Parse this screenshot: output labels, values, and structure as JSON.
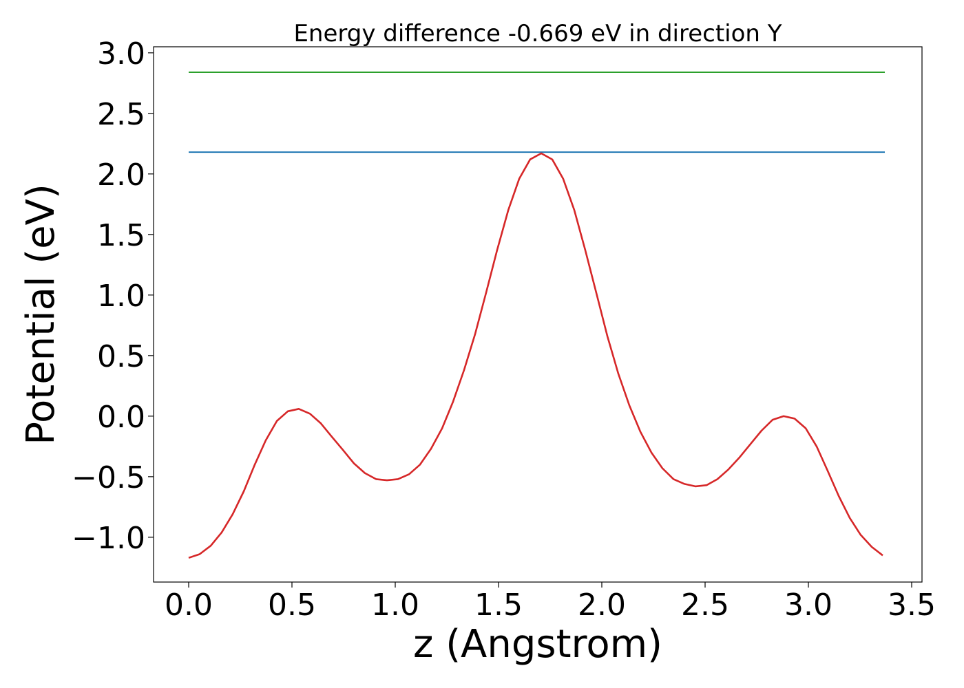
{
  "chart_data": {
    "type": "line",
    "title": "Energy difference -0.669 eV in direction Y",
    "xlabel": "z (Angstrom)",
    "ylabel": "Potential (eV)",
    "xlim": [
      -0.17,
      3.55
    ],
    "ylim": [
      -1.37,
      3.05
    ],
    "xticks": [
      {
        "value": 0.0,
        "label": "0.0"
      },
      {
        "value": 0.5,
        "label": "0.5"
      },
      {
        "value": 1.0,
        "label": "1.0"
      },
      {
        "value": 1.5,
        "label": "1.5"
      },
      {
        "value": 2.0,
        "label": "2.0"
      },
      {
        "value": 2.5,
        "label": "2.5"
      },
      {
        "value": 3.0,
        "label": "3.0"
      },
      {
        "value": 3.5,
        "label": "3.5"
      }
    ],
    "yticks": [
      {
        "value": -1.0,
        "label": "−1.0"
      },
      {
        "value": -0.5,
        "label": "−0.5"
      },
      {
        "value": 0.0,
        "label": "0.0"
      },
      {
        "value": 0.5,
        "label": "0.5"
      },
      {
        "value": 1.0,
        "label": "1.0"
      },
      {
        "value": 1.5,
        "label": "1.5"
      },
      {
        "value": 2.0,
        "label": "2.0"
      },
      {
        "value": 2.5,
        "label": "2.5"
      },
      {
        "value": 3.0,
        "label": "3.0"
      }
    ],
    "grid": false,
    "series": [
      {
        "color": "#2ca02c",
        "x": [
          0.0,
          3.37
        ],
        "y": [
          2.84,
          2.84
        ]
      },
      {
        "color": "#1f77b4",
        "x": [
          0.0,
          3.37
        ],
        "y": [
          2.18,
          2.18
        ]
      },
      {
        "color": "#d62728",
        "x": [
          0.0,
          0.053,
          0.107,
          0.16,
          0.213,
          0.267,
          0.32,
          0.373,
          0.427,
          0.48,
          0.533,
          0.587,
          0.64,
          0.693,
          0.747,
          0.8,
          0.853,
          0.907,
          0.96,
          1.013,
          1.067,
          1.12,
          1.173,
          1.227,
          1.28,
          1.333,
          1.387,
          1.44,
          1.493,
          1.547,
          1.6,
          1.653,
          1.707,
          1.76,
          1.813,
          1.867,
          1.92,
          1.973,
          2.027,
          2.08,
          2.133,
          2.187,
          2.24,
          2.293,
          2.347,
          2.4,
          2.453,
          2.507,
          2.56,
          2.613,
          2.667,
          2.72,
          2.773,
          2.827,
          2.88,
          2.933,
          2.987,
          3.04,
          3.093,
          3.147,
          3.2,
          3.253,
          3.307,
          3.36
        ],
        "y": [
          -1.17,
          -1.14,
          -1.07,
          -0.96,
          -0.81,
          -0.62,
          -0.4,
          -0.2,
          -0.04,
          0.04,
          0.06,
          0.02,
          -0.06,
          -0.17,
          -0.28,
          -0.39,
          -0.47,
          -0.52,
          -0.53,
          -0.52,
          -0.48,
          -0.4,
          -0.27,
          -0.1,
          0.12,
          0.38,
          0.68,
          1.02,
          1.37,
          1.7,
          1.96,
          2.12,
          2.17,
          2.12,
          1.96,
          1.7,
          1.37,
          1.02,
          0.66,
          0.35,
          0.09,
          -0.13,
          -0.3,
          -0.43,
          -0.52,
          -0.56,
          -0.58,
          -0.57,
          -0.52,
          -0.44,
          -0.34,
          -0.23,
          -0.12,
          -0.03,
          0.0,
          -0.02,
          -0.1,
          -0.25,
          -0.45,
          -0.66,
          -0.84,
          -0.98,
          -1.08,
          -1.15
        ]
      }
    ]
  }
}
